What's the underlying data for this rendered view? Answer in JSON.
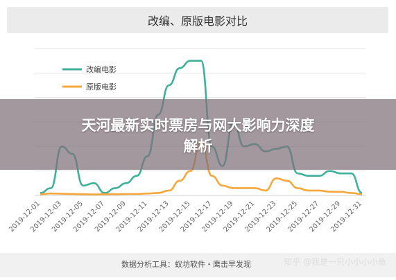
{
  "chart_data": {
    "type": "line",
    "title": "改编、原版电影对比",
    "x": [
      "2019-12-01",
      "2019-12-02",
      "2019-12-03",
      "2019-12-04",
      "2019-12-05",
      "2019-12-06",
      "2019-12-07",
      "2019-12-08",
      "2019-12-09",
      "2019-12-10",
      "2019-12-11",
      "2019-12-12",
      "2019-12-13",
      "2019-12-14",
      "2019-12-15",
      "2019-12-16",
      "2019-12-17",
      "2019-12-18",
      "2019-12-19",
      "2019-12-20",
      "2019-12-21",
      "2019-12-22",
      "2019-12-23",
      "2019-12-24",
      "2019-12-25",
      "2019-12-26",
      "2019-12-27",
      "2019-12-28",
      "2019-12-29",
      "2019-12-30",
      "2019-12-31"
    ],
    "tick_labels": [
      "2019-12-01",
      "2019-12-03",
      "2019-12-05",
      "2019-12-07",
      "2019-12-09",
      "2019-12-11",
      "2019-12-13",
      "2019-12-15",
      "2019-12-17",
      "2019-12-19",
      "2019-12-21",
      "2019-12-23",
      "2019-12-25",
      "2019-12-27",
      "2019-12-29",
      "2019-12-31"
    ],
    "series": [
      {
        "name": "改编电影",
        "color": "#3fb099",
        "values": [
          1,
          3,
          20,
          17,
          4,
          5,
          1,
          3,
          5,
          8,
          16,
          33,
          45,
          52,
          55,
          55,
          20,
          12,
          30,
          20,
          21,
          18,
          19,
          20,
          9,
          8,
          8,
          10,
          9,
          9,
          1
        ]
      },
      {
        "name": "原版电影",
        "color": "#f5a73c",
        "values": [
          0.5,
          0.8,
          0.7,
          0.6,
          0.5,
          0.4,
          0.5,
          0.5,
          0.6,
          0.6,
          0.8,
          1,
          2,
          6,
          10,
          22,
          8,
          4,
          3,
          3,
          3,
          2,
          7,
          6,
          3,
          2,
          2,
          1.5,
          1.5,
          1,
          0.5
        ]
      }
    ],
    "ylim": [
      0,
      60
    ],
    "grid": true,
    "legend_position": "top-left"
  },
  "overlay": {
    "line1": "天河最新实时票房与网大影响力深度",
    "line2": "解析"
  },
  "footer": {
    "source": "数据分析工具：蚁坊软件・鹰击早发现",
    "watermark": "知乎 @我是一只小小小小鱼"
  }
}
